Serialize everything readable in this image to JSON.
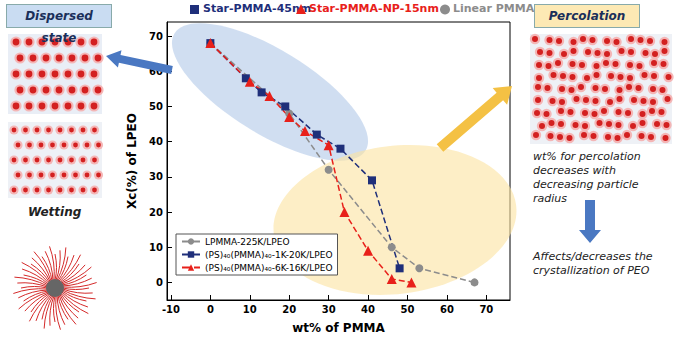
{
  "chart_data": {
    "type": "line",
    "x_label": "wt% of PMMA",
    "y_label": "Xc(%) of LPEO",
    "xlim": [
      -11,
      76
    ],
    "xticks": [
      -10,
      0,
      10,
      20,
      30,
      40,
      50,
      60,
      70
    ],
    "ylim": [
      -5,
      74
    ],
    "yticks": [
      0,
      10,
      20,
      30,
      40,
      50,
      60,
      70
    ],
    "legend": "lower left",
    "line_style": "dashed",
    "series": [
      {
        "name": "LPMMA-225K/LPEO",
        "tag": "Linear PMMA",
        "color": "#8c8c8c",
        "marker": "circle",
        "x": [
          0,
          20,
          30,
          46,
          53,
          67
        ],
        "values": [
          68,
          48,
          32,
          10,
          4,
          0
        ]
      },
      {
        "name": "(PS)₄₀(PMMA)₄₀-1K-20K/LPEO",
        "tag": "Star-PMMA-45nm",
        "color": "#1f2f7a",
        "marker": "square",
        "x": [
          0,
          9,
          13,
          19,
          27,
          33,
          41,
          48
        ],
        "values": [
          68,
          58,
          54,
          50,
          42,
          38,
          29,
          4
        ]
      },
      {
        "name": "(PS)₄₀(PMMA)₄₀-6K-16K/LPEO",
        "tag": "Star-PMMA-NP-15nm",
        "color": "#e8201a",
        "marker": "triangle",
        "x": [
          0,
          10,
          15,
          20,
          24,
          30,
          34,
          40,
          46,
          51
        ],
        "values": [
          68,
          57,
          53,
          47,
          43,
          39,
          20,
          9,
          1,
          0
        ]
      }
    ],
    "annotations": {
      "left_title": "Dispersed state",
      "left_caption": "Wetting",
      "right_title": "Percolation",
      "right_note": "wt% for percolation decreases with decreasing particle radius",
      "right_result": "Affects/decreases the crystallization of PEO"
    }
  }
}
